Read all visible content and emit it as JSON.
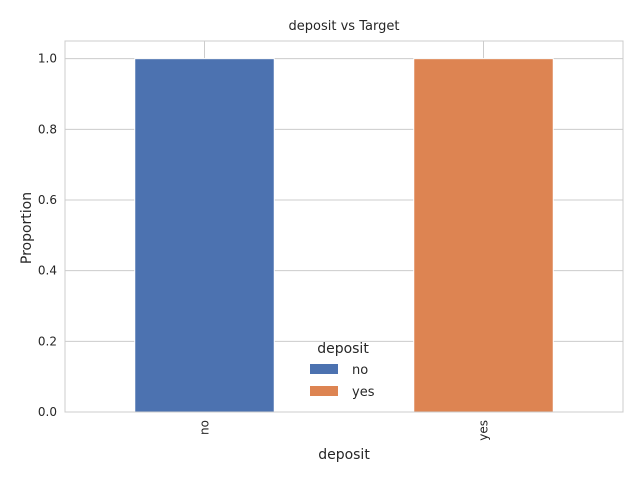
{
  "chart_data": {
    "type": "bar",
    "stacked": true,
    "title": "deposit vs Target",
    "xlabel": "deposit",
    "ylabel": "Proportion",
    "categories": [
      "no",
      "yes"
    ],
    "series": [
      {
        "name": "no",
        "values": [
          1.0,
          0.0
        ],
        "color": "#4c72b0"
      },
      {
        "name": "yes",
        "values": [
          0.0,
          1.0
        ],
        "color": "#dd8452"
      }
    ],
    "ylim": [
      0,
      1.05
    ],
    "yticks": [
      0.0,
      0.2,
      0.4,
      0.6,
      0.8,
      1.0
    ],
    "ytick_labels": [
      "0.0",
      "0.2",
      "0.4",
      "0.6",
      "0.8",
      "1.0"
    ],
    "grid": true,
    "legend": {
      "title": "deposit",
      "placement": "lower-center"
    }
  }
}
